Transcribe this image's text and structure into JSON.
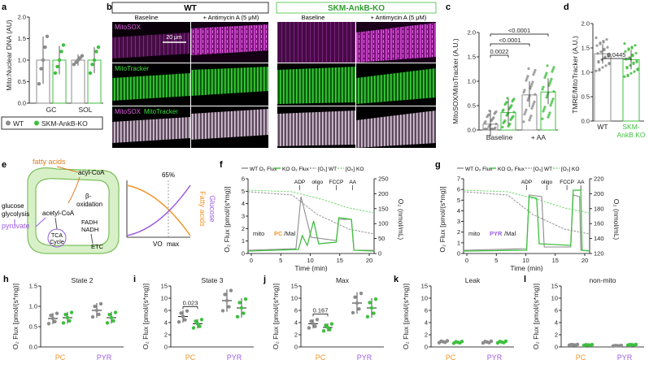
{
  "panels": {
    "a": {
      "letter": "a",
      "ylabel": "Mito:Nuclear DNA (AU)",
      "ticks": [
        "0.0",
        "0.5",
        "1.0",
        "1.5",
        "2.0"
      ],
      "groups": [
        "GC",
        "SOL"
      ],
      "legend": [
        "WT",
        "SKM-AnkB-KO"
      ],
      "chart_data": {
        "type": "bar",
        "categories": [
          "GC",
          "SOL"
        ],
        "ylim": [
          0,
          2
        ],
        "series": [
          {
            "name": "WT",
            "values": [
              1.0,
              1.0
            ],
            "err": [
              0.55,
              0.13
            ],
            "points": [
              [
                0.45,
                0.8,
                1.0,
                1.3,
                1.55
              ],
              [
                0.9,
                0.95,
                1.0,
                1.05,
                1.1
              ]
            ]
          },
          {
            "name": "SKM-AnkB-KO",
            "values": [
              1.0,
              1.0
            ],
            "err": [
              0.33,
              0.3
            ],
            "points": [
              [
                0.7,
                0.85,
                1.0,
                1.2,
                1.35
              ],
              [
                0.7,
                0.9,
                1.0,
                1.2,
                1.3
              ]
            ]
          }
        ]
      }
    },
    "b": {
      "letter": "b",
      "wt_title": "WT",
      "ko_title": "SKM-AnkB-KO",
      "baseline": "Baseline",
      "aa": "+ Antimycin A (5 μM)",
      "rows": [
        "MitoSOX",
        "MitoTracker",
        "MitoSOX",
        "MitoTracker"
      ],
      "scale": "20 μm"
    },
    "c": {
      "letter": "c",
      "ylabel": "MitoSOX/MitoTracker (A.U.)",
      "ticks": [
        "0.0",
        "0.5",
        "1.0",
        "1.5",
        "2.0"
      ],
      "groups": [
        "Baseline",
        "+ AA"
      ],
      "pvals": [
        "0.0022",
        "<0.0001",
        "<0.0001"
      ],
      "chart_data": {
        "type": "bar",
        "categories": [
          "Baseline",
          "+ AA"
        ],
        "ylim": [
          0,
          2
        ],
        "series": [
          {
            "name": "WT",
            "values": [
              0.12,
              0.72
            ]
          },
          {
            "name": "SKM-AnkB-KO",
            "values": [
              0.36,
              0.78
            ]
          }
        ]
      }
    },
    "d": {
      "letter": "d",
      "ylabel": "TMRE/MitoTracker (A.U.)",
      "ticks": [
        "0.0",
        "0.5",
        "1.0",
        "1.5",
        "2.0"
      ],
      "groups": [
        "WT",
        "SKM-AnkB KO"
      ],
      "line2": "AnkB KO",
      "line1": "SKM-",
      "pval": "0.0445",
      "chart_data": {
        "type": "bar",
        "categories": [
          "WT",
          "SKM-AnkB KO"
        ],
        "ylim": [
          0,
          2
        ],
        "values": [
          1.38,
          1.26
        ]
      }
    },
    "e": {
      "letter": "e",
      "fa": "fatty acids",
      "acyl": "acyl-CoA",
      "glucose": "glucose",
      "glyc": "glycolysis",
      "pyr": "pyruvate",
      "acetyl": "acetyl-CoA",
      "beta": "β-",
      "ox": "oxidation",
      "fadh": "FADH",
      "nadh": "NADH",
      "tca": "TCA",
      "cycle": "Cycle",
      "etc": "ETC",
      "pct": "65%",
      "fa_axis": "Fatty acids",
      "glu_axis": "Glucose",
      "vo2": "VO",
      "vo2b": "max"
    },
    "f": {
      "letter": "f",
      "legend": [
        "WT O",
        "KO O",
        "[O",
        "[O"
      ],
      "legend_full": [
        "WT O₂ Flux",
        "KO O₂ Flux",
        "[O₂] WT",
        "[O₂] KO"
      ],
      "ylabel": "O₂ Flux [pmol/(s*mg)]",
      "y2label": "O₂ (nmol/mL)",
      "xlabel": "Time (min)",
      "yticks": [
        "0",
        "1",
        "2",
        "3",
        "4",
        "5",
        "6"
      ],
      "y2ticks": [
        "0",
        "50",
        "100",
        "150",
        "200",
        "250"
      ],
      "xticks": [
        "0",
        "5",
        "10",
        "15",
        "20"
      ],
      "annot": [
        "mito",
        "PC",
        "/Mal",
        "ADP",
        "oligo",
        "FCCP",
        "AA"
      ]
    },
    "g": {
      "letter": "g",
      "legend_full": [
        "WT O₂ Flux",
        "KO O₂ Flux",
        "[O₂] WT",
        "[O₂] KO"
      ],
      "ylabel": "O₂ Flux [pmol/(s*mg)]",
      "y2label": "O₂ (nmol/mL)",
      "xlabel": "Time (min)",
      "yticks": [
        "0",
        "1",
        "2",
        "3",
        "4",
        "5",
        "6",
        "7"
      ],
      "y2ticks": [
        "120",
        "140",
        "160",
        "180",
        "200",
        "220"
      ],
      "xticks": [
        "0",
        "5",
        "10",
        "15",
        "20"
      ],
      "annot": [
        "mito",
        "PYR",
        "/Mal",
        "ADP",
        "oligo",
        "FCCP",
        "AA"
      ]
    },
    "h": {
      "letter": "h",
      "title": "State 2",
      "ylabel": "O₂ Flux [pmol/(s*mg)]",
      "ticks": [
        "0.0",
        "0.5",
        "1.0",
        "1.5"
      ],
      "groups": [
        "PC",
        "PYR"
      ],
      "chart_data": {
        "type": "bar",
        "categories": [
          "PC",
          "PYR"
        ],
        "ylim": [
          0,
          1.5
        ],
        "series": [
          {
            "name": "WT",
            "values": [
              0.7,
              0.9
            ]
          },
          {
            "name": "SKM-AnkB-KO",
            "values": [
              0.72,
              0.72
            ]
          }
        ]
      }
    },
    "i": {
      "letter": "i",
      "title": "State 3",
      "ylabel": "O₂ Flux [pmol/(s*mg)]",
      "ticks": [
        "0",
        "2",
        "4",
        "6",
        "10",
        "15"
      ],
      "groups": [
        "PC",
        "PYR"
      ],
      "pval": "0.023",
      "chart_data": {
        "type": "bar",
        "categories": [
          "PC",
          "PYR"
        ],
        "series": [
          {
            "name": "WT",
            "values": [
              5.0,
              11.5
            ]
          },
          {
            "name": "SKM-AnkB-KO",
            "values": [
              3.8,
              10.0
            ]
          }
        ]
      }
    },
    "j": {
      "letter": "j",
      "title": "Max",
      "ylabel": "O₂ Flux [pmol/(s*mg)]",
      "ticks": [
        "0",
        "2",
        "4",
        "6",
        "10",
        "15"
      ],
      "groups": [
        "PC",
        "PYR"
      ],
      "pval": "0.167",
      "chart_data": {
        "type": "bar",
        "categories": [
          "PC",
          "PYR"
        ],
        "series": [
          {
            "name": "WT",
            "values": [
              3.8,
              11.0
            ]
          },
          {
            "name": "SKM-AnkB-KO",
            "values": [
              3.2,
              10.0
            ]
          }
        ]
      }
    },
    "k": {
      "letter": "k",
      "title": "Leak",
      "ylabel": "O₂ Flux [pmol/(s*mg)]",
      "ticks": [
        "0",
        "2",
        "4",
        "6",
        "10",
        "15"
      ],
      "groups": [
        "PC",
        "PYR"
      ],
      "chart_data": {
        "type": "bar",
        "categories": [
          "PC",
          "PYR"
        ],
        "series": [
          {
            "name": "WT",
            "values": [
              0.85,
              0.8
            ]
          },
          {
            "name": "SKM-AnkB-KO",
            "values": [
              0.75,
              0.8
            ]
          }
        ]
      }
    },
    "l": {
      "letter": "l",
      "title": "non-mito",
      "ylabel": "O₂ Flux [pmol/(s*mg)]",
      "ticks": [
        "0",
        "2",
        "4",
        "6",
        "10",
        "15"
      ],
      "groups": [
        "PC",
        "PYR"
      ],
      "chart_data": {
        "type": "bar",
        "categories": [
          "PC",
          "PYR"
        ],
        "series": [
          {
            "name": "WT",
            "values": [
              0.35,
              0.2
            ]
          },
          {
            "name": "SKM-AnkB-KO",
            "values": [
              0.32,
              0.35
            ]
          }
        ]
      }
    }
  },
  "colors": {
    "wt": "#8c8c8c",
    "ko": "#3fbf3f",
    "pc": "#f0962a",
    "pyr": "#9a5be0",
    "magenta": "#d43cd4",
    "green": "#2ccf2c"
  }
}
